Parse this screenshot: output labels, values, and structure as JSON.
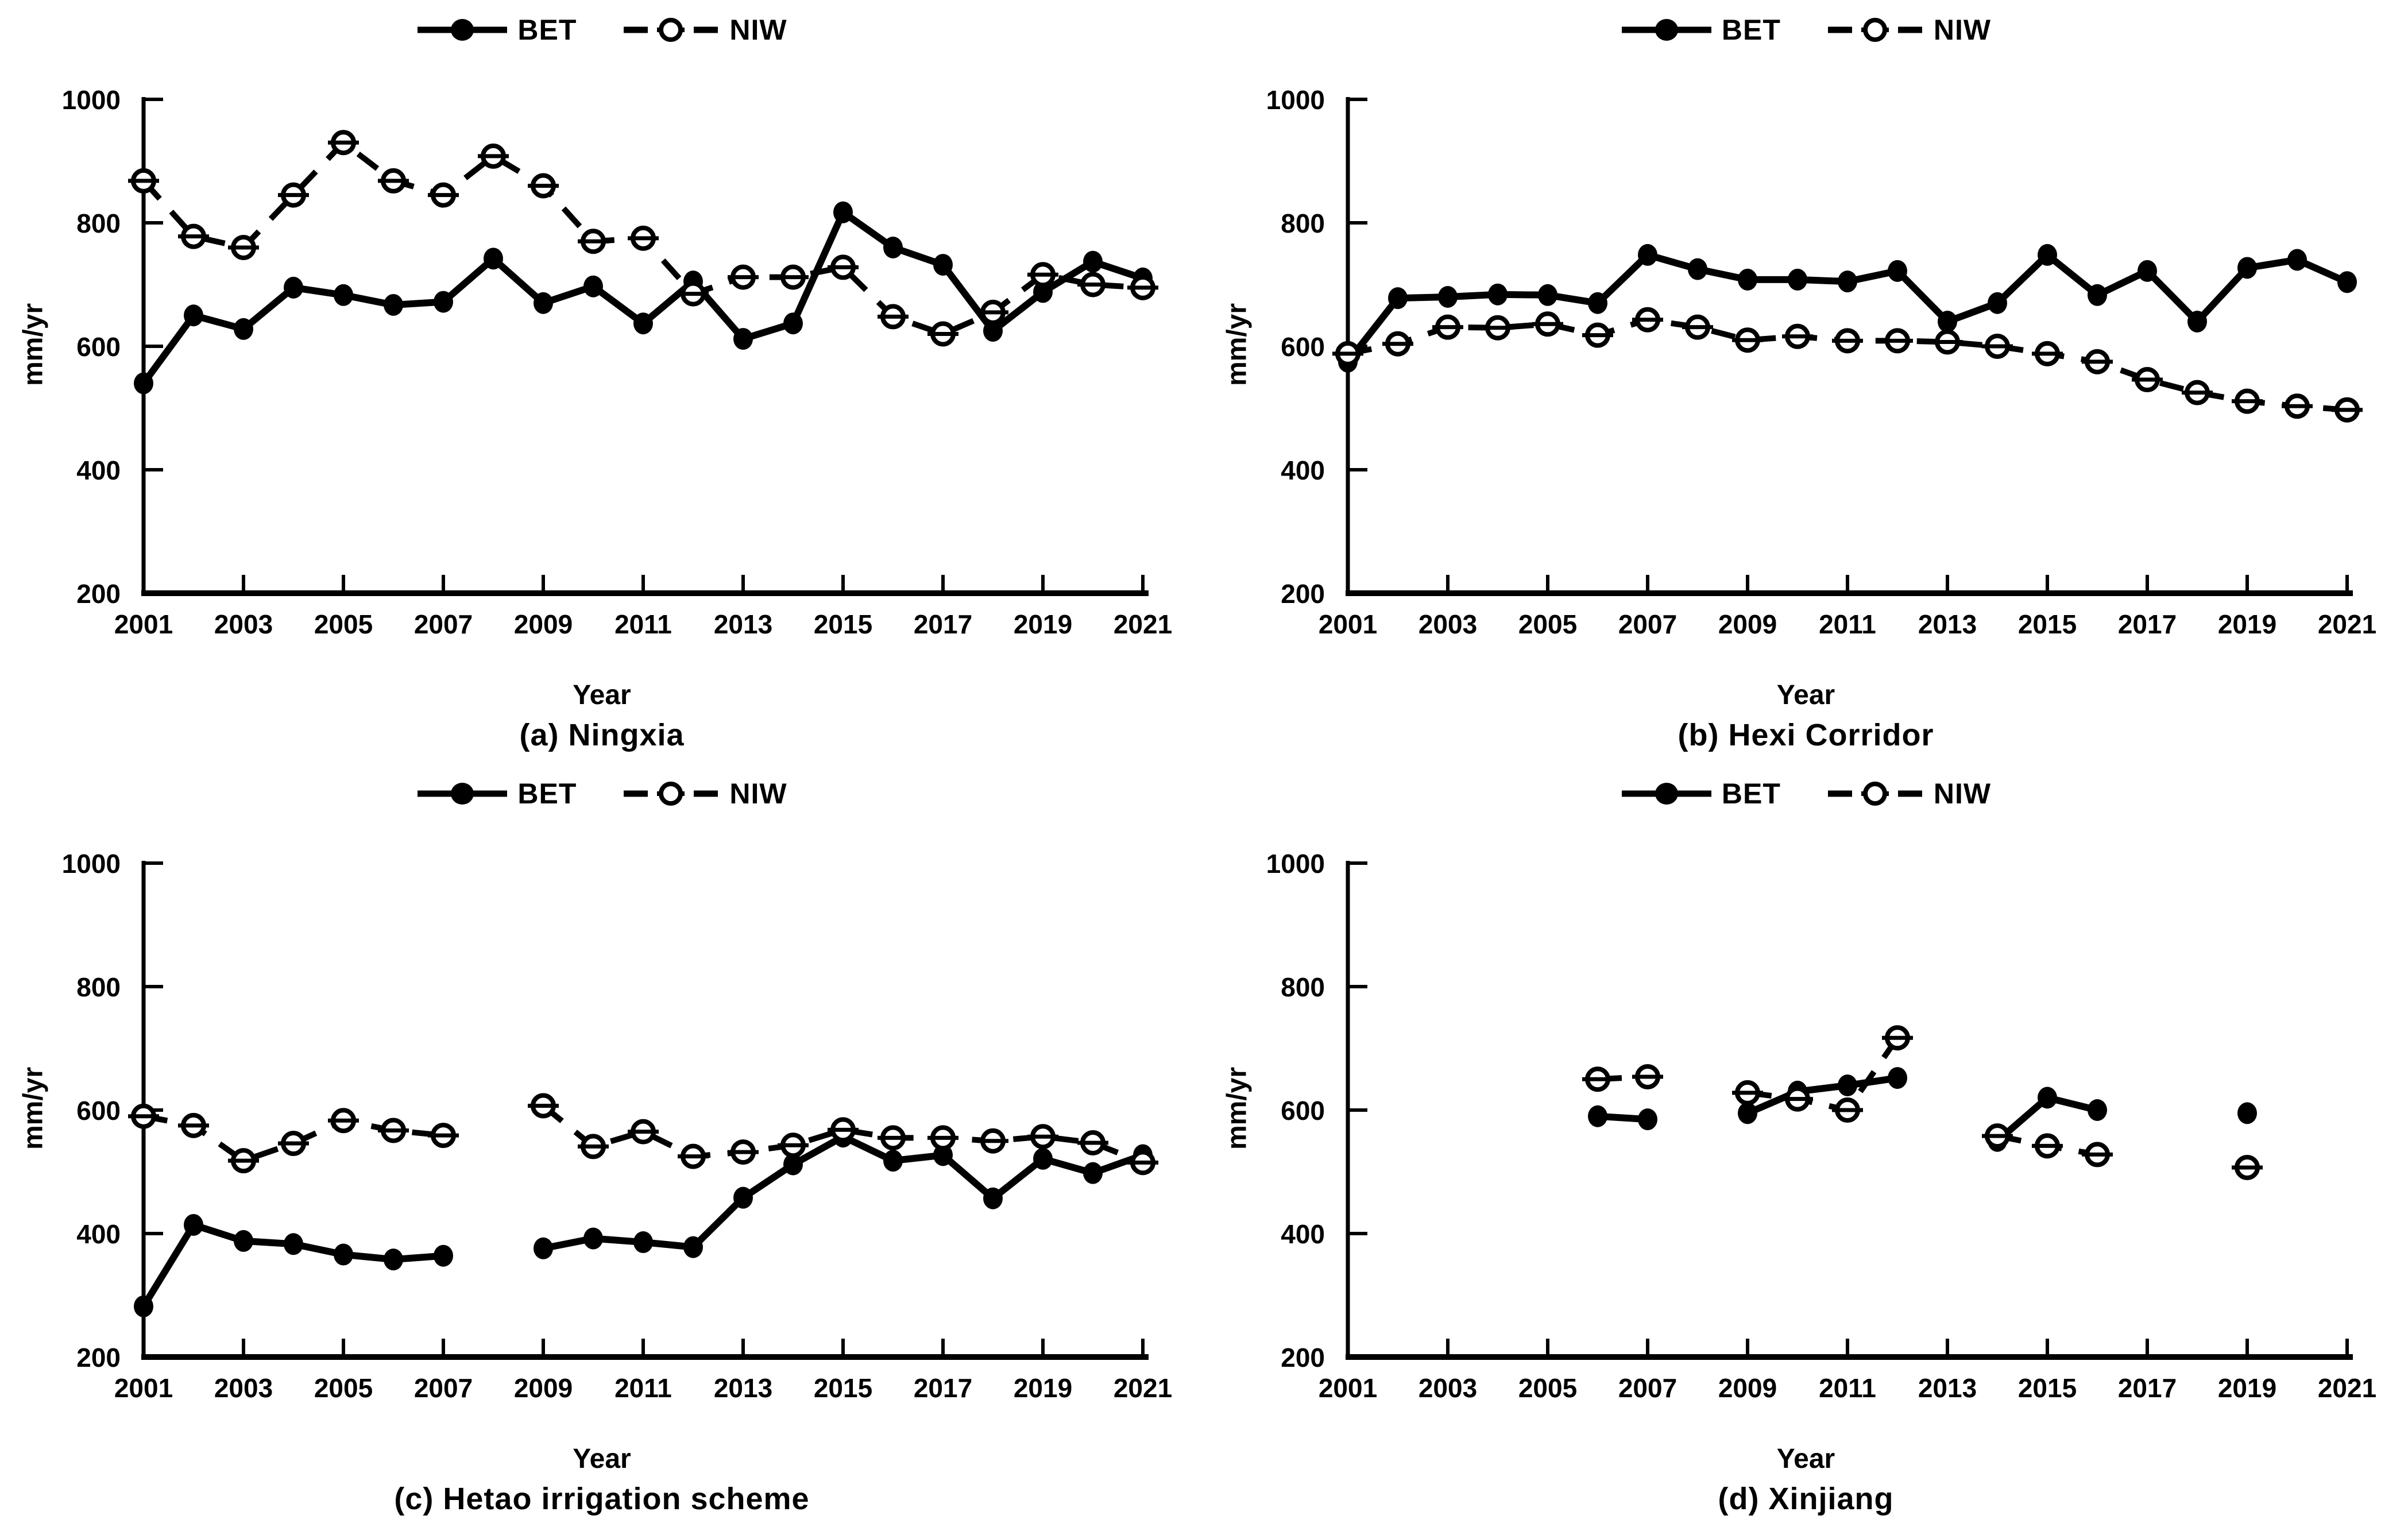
{
  "legend": {
    "bet": "BET",
    "niw": "NIW"
  },
  "axes": {
    "xlabel": "Year",
    "ylabel": "mm/yr"
  },
  "colors": {
    "line": "#000000",
    "background": "#ffffff",
    "marker_open_fill": "#ffffff"
  },
  "chart_data": [
    {
      "type": "line",
      "title": "(a) Ningxia",
      "xlabel": "Year",
      "ylabel": "mm/yr",
      "ylim": [
        200,
        1000
      ],
      "yticks": [
        200,
        400,
        600,
        800,
        1000
      ],
      "xtick_labels": [
        2001,
        2003,
        2005,
        2007,
        2009,
        2011,
        2013,
        2015,
        2017,
        2019,
        2021
      ],
      "legend_position": "top-center",
      "grid": false,
      "x": [
        2001,
        2002,
        2003,
        2004,
        2005,
        2006,
        2007,
        2008,
        2009,
        2010,
        2011,
        2012,
        2013,
        2014,
        2015,
        2016,
        2017,
        2018,
        2019,
        2020,
        2021
      ],
      "series": [
        {
          "name": "BET",
          "line": "solid",
          "marker": "filled-circle",
          "color": "#000000",
          "values": [
            540,
            650,
            628,
            695,
            683,
            667,
            672,
            742,
            670,
            697,
            637,
            705,
            612,
            637,
            817,
            760,
            732,
            625,
            688,
            737,
            710
          ]
        },
        {
          "name": "NIW",
          "line": "dashed",
          "marker": "open-circle",
          "color": "#000000",
          "values": [
            868,
            778,
            760,
            845,
            930,
            868,
            845,
            908,
            860,
            770,
            775,
            685,
            712,
            712,
            728,
            648,
            620,
            655,
            716,
            700,
            695
          ]
        }
      ]
    },
    {
      "type": "line",
      "title": "(b) Hexi Corridor",
      "xlabel": "Year",
      "ylabel": "mm/yr",
      "ylim": [
        200,
        1000
      ],
      "yticks": [
        200,
        400,
        600,
        800,
        1000
      ],
      "xtick_labels": [
        2001,
        2003,
        2005,
        2007,
        2009,
        2011,
        2013,
        2015,
        2017,
        2019,
        2021
      ],
      "legend_position": "top-center",
      "grid": false,
      "x": [
        2001,
        2002,
        2003,
        2004,
        2005,
        2006,
        2007,
        2008,
        2009,
        2010,
        2011,
        2012,
        2013,
        2014,
        2015,
        2016,
        2017,
        2018,
        2019,
        2020,
        2021
      ],
      "series": [
        {
          "name": "BET",
          "line": "solid",
          "marker": "filled-circle",
          "color": "#000000",
          "values": [
            575,
            678,
            680,
            684,
            683,
            670,
            748,
            725,
            708,
            708,
            705,
            722,
            640,
            670,
            748,
            683,
            722,
            640,
            727,
            740,
            704
          ]
        },
        {
          "name": "NIW",
          "line": "dashed",
          "marker": "open-circle",
          "color": "#000000",
          "values": [
            588,
            604,
            631,
            630,
            636,
            618,
            643,
            631,
            610,
            616,
            609,
            609,
            607,
            600,
            588,
            575,
            546,
            525,
            511,
            503,
            497
          ]
        }
      ]
    },
    {
      "type": "line",
      "title": "(c) Hetao irrigation scheme",
      "xlabel": "Year",
      "ylabel": "mm/yr",
      "ylim": [
        200,
        1000
      ],
      "yticks": [
        200,
        400,
        600,
        800,
        1000
      ],
      "xtick_labels": [
        2001,
        2003,
        2005,
        2007,
        2009,
        2011,
        2013,
        2015,
        2017,
        2019,
        2021
      ],
      "legend_position": "top-center",
      "grid": false,
      "x": [
        2001,
        2002,
        2003,
        2004,
        2005,
        2006,
        2007,
        2008,
        2009,
        2010,
        2011,
        2012,
        2013,
        2014,
        2015,
        2016,
        2017,
        2018,
        2019,
        2020,
        2021
      ],
      "series": [
        {
          "name": "BET",
          "line": "solid",
          "marker": "filled-circle",
          "color": "#000000",
          "values": [
            282,
            414,
            388,
            383,
            366,
            358,
            364,
            null,
            376,
            392,
            386,
            378,
            458,
            512,
            557,
            518,
            527,
            457,
            521,
            498,
            527
          ]
        },
        {
          "name": "NIW",
          "line": "dashed",
          "marker": "open-circle",
          "color": "#000000",
          "values": [
            590,
            575,
            518,
            546,
            583,
            567,
            559,
            null,
            607,
            541,
            565,
            525,
            532,
            543,
            568,
            555,
            555,
            550,
            557,
            547,
            515
          ]
        }
      ]
    },
    {
      "type": "line",
      "title": "(d) Xinjiang",
      "xlabel": "Year",
      "ylabel": "mm/yr",
      "ylim": [
        200,
        1000
      ],
      "yticks": [
        200,
        400,
        600,
        800,
        1000
      ],
      "xtick_labels": [
        2001,
        2003,
        2005,
        2007,
        2009,
        2011,
        2013,
        2015,
        2017,
        2019,
        2021
      ],
      "legend_position": "top-center",
      "grid": false,
      "x": [
        2001,
        2002,
        2003,
        2004,
        2005,
        2006,
        2007,
        2008,
        2009,
        2010,
        2011,
        2012,
        2013,
        2014,
        2015,
        2016,
        2017,
        2018,
        2019,
        2020,
        2021
      ],
      "series": [
        {
          "name": "BET",
          "line": "solid",
          "marker": "filled-circle",
          "color": "#000000",
          "values": [
            null,
            null,
            null,
            null,
            null,
            590,
            585,
            null,
            595,
            630,
            640,
            652,
            null,
            550,
            620,
            600,
            null,
            null,
            595,
            null,
            null
          ]
        },
        {
          "name": "NIW",
          "line": "dashed",
          "marker": "open-circle",
          "color": "#000000",
          "values": [
            null,
            null,
            null,
            null,
            null,
            650,
            654,
            null,
            628,
            618,
            600,
            717,
            null,
            558,
            542,
            528,
            null,
            null,
            507,
            null,
            null
          ]
        }
      ]
    }
  ]
}
